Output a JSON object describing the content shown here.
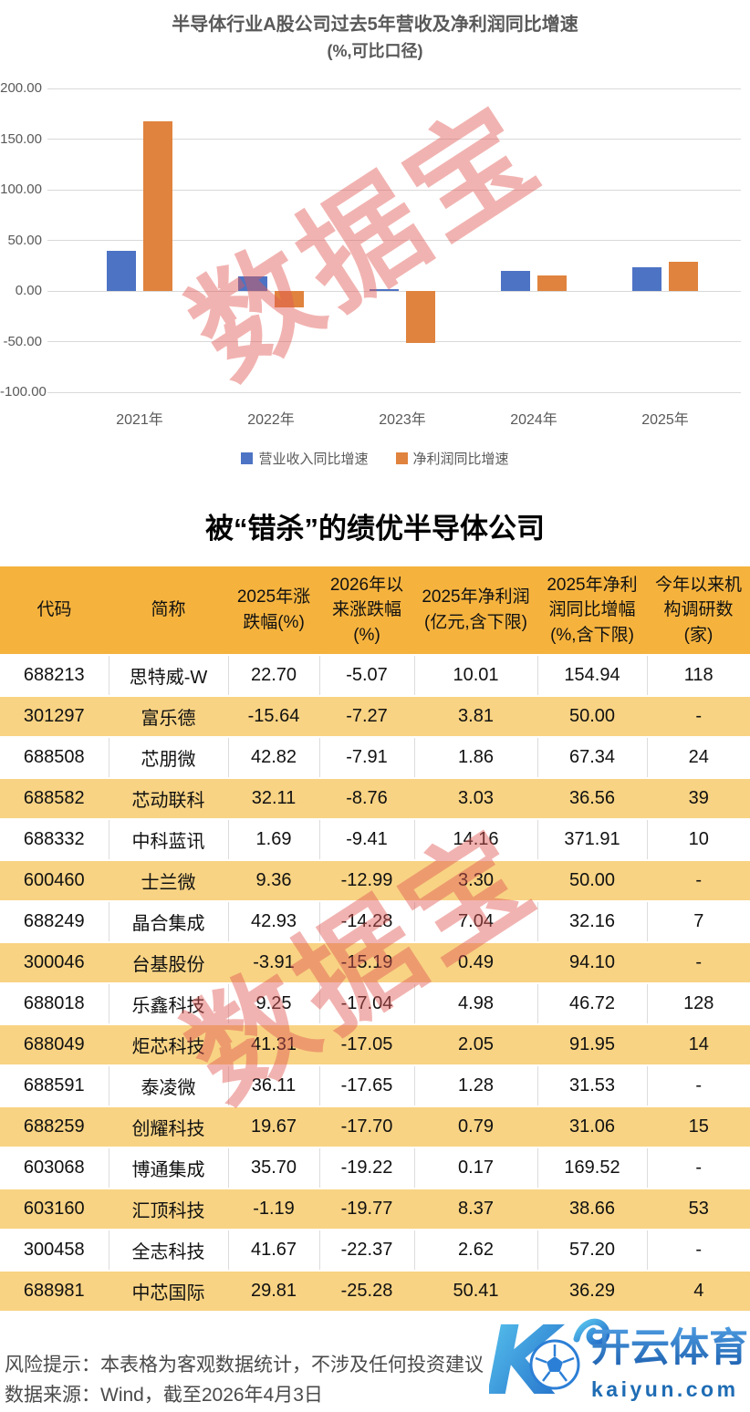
{
  "chart": {
    "title_line1": "半导体行业A股公司过去5年营收及净利润同比增速",
    "title_line2": "(%,可比口径)"
  },
  "chart_data": {
    "type": "bar",
    "title": "半导体行业A股公司过去5年营收及净利润同比增速",
    "subtitle": "(%,可比口径)",
    "categories": [
      "2021年",
      "2022年",
      "2023年",
      "2024年",
      "2025年"
    ],
    "series": [
      {
        "name": "营业收入同比增速",
        "color": "#4D73C4",
        "values": [
          40,
          14,
          2,
          20,
          23
        ]
      },
      {
        "name": "净利润同比增速",
        "color": "#E0833E",
        "values": [
          168,
          -16,
          -51,
          15,
          29
        ]
      }
    ],
    "ylim": [
      -100,
      200
    ],
    "yticks": [
      {
        "label": "200.00",
        "value": 200
      },
      {
        "label": "150.00",
        "value": 150
      },
      {
        "label": "100.00",
        "value": 100
      },
      {
        "label": "50.00",
        "value": 50
      },
      {
        "label": "0.00",
        "value": 0
      },
      {
        "label": "-50.00",
        "value": -50
      },
      {
        "label": "-100.00",
        "value": -100
      }
    ],
    "grid": true,
    "legend_position": "bottom"
  },
  "watermark": {
    "text": "数据宝"
  },
  "table": {
    "title": "被“错杀”的绩优半导体公司",
    "headers": [
      "代码",
      "简称",
      "2025年涨跌幅(%)",
      "2026年以来涨跌幅(%)",
      "2025年净利润(亿元,含下限)",
      "2025年净利润同比增幅(%,含下限)",
      "今年以来机构调研数(家)"
    ],
    "rows": [
      [
        "688213",
        "思特威-W",
        "22.70",
        "-5.07",
        "10.01",
        "154.94",
        "118"
      ],
      [
        "301297",
        "富乐德",
        "-15.64",
        "-7.27",
        "3.81",
        "50.00",
        "-"
      ],
      [
        "688508",
        "芯朋微",
        "42.82",
        "-7.91",
        "1.86",
        "67.34",
        "24"
      ],
      [
        "688582",
        "芯动联科",
        "32.11",
        "-8.76",
        "3.03",
        "36.56",
        "39"
      ],
      [
        "688332",
        "中科蓝讯",
        "1.69",
        "-9.41",
        "14.16",
        "371.91",
        "10"
      ],
      [
        "600460",
        "士兰微",
        "9.36",
        "-12.99",
        "3.30",
        "50.00",
        "-"
      ],
      [
        "688249",
        "晶合集成",
        "42.93",
        "-14.28",
        "7.04",
        "32.16",
        "7"
      ],
      [
        "300046",
        "台基股份",
        "-3.91",
        "-15.19",
        "0.49",
        "94.10",
        "-"
      ],
      [
        "688018",
        "乐鑫科技",
        "9.25",
        "-17.04",
        "4.98",
        "46.72",
        "128"
      ],
      [
        "688049",
        "炬芯科技",
        "41.31",
        "-17.05",
        "2.05",
        "91.95",
        "14"
      ],
      [
        "688591",
        "泰凌微",
        "36.11",
        "-17.65",
        "1.28",
        "31.53",
        "-"
      ],
      [
        "688259",
        "创耀科技",
        "19.67",
        "-17.70",
        "0.79",
        "31.06",
        "15"
      ],
      [
        "603068",
        "博通集成",
        "35.70",
        "-19.22",
        "0.17",
        "169.52",
        "-"
      ],
      [
        "603160",
        "汇顶科技",
        "-1.19",
        "-19.77",
        "8.37",
        "38.66",
        "53"
      ],
      [
        "300458",
        "全志科技",
        "41.67",
        "-22.37",
        "2.62",
        "57.20",
        "-"
      ],
      [
        "688981",
        "中芯国际",
        "29.81",
        "-25.28",
        "50.41",
        "36.29",
        "4"
      ]
    ]
  },
  "footer": {
    "risk": "风险提示：本表格为客观数据统计，不涉及任何投资建议",
    "source": "数据来源：Wind，截至2026年4月3日"
  },
  "logo": {
    "letter": "K",
    "brand": "开云体育",
    "domain": "kaiyun.com"
  },
  "colors": {
    "bar_blue": "#4D73C4",
    "bar_orange": "#E0833E",
    "header_bg": "#F5B33E",
    "row_alt_bg": "#F8D383",
    "watermark_pink": "#E05A54",
    "axis_gray": "#595959"
  }
}
